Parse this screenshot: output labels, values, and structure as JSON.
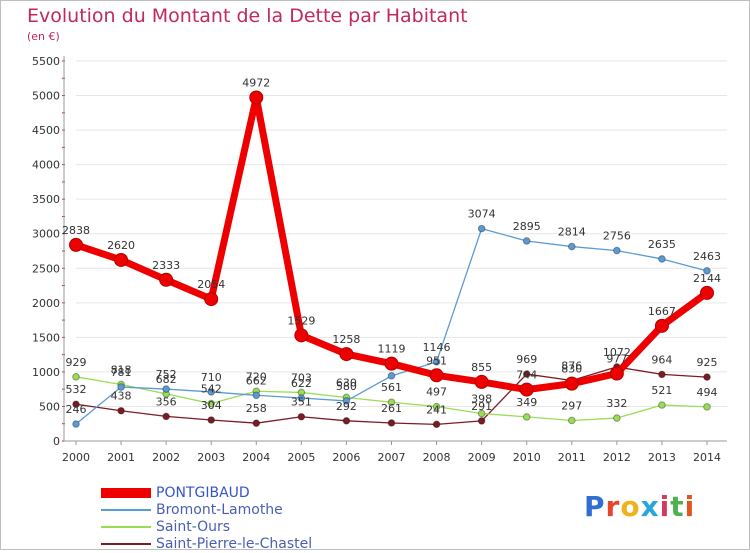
{
  "header": {
    "title": "Evolution du Montant de la Dette par Habitant",
    "subtitle": "(en €)"
  },
  "logo": {
    "text": "Proxiti",
    "letter_colors": [
      "#2f6fcf",
      "#e8442c",
      "#f0b21c",
      "#2aa6d8",
      "#d23c5a",
      "#4fb04f",
      "#e0561e"
    ]
  },
  "colors": {
    "title": "#c0285e",
    "axis_text": "#333333",
    "grid": "#e6e6e6",
    "tick": "#c0285e"
  },
  "chart_data": {
    "type": "line",
    "title": "Evolution du Montant de la Dette par Habitant",
    "subtitle": "(en €)",
    "x": [
      "2000",
      "2001",
      "2002",
      "2003",
      "2004",
      "2005",
      "2006",
      "2007",
      "2008",
      "2009",
      "2010",
      "2011",
      "2012",
      "2013",
      "2014"
    ],
    "ylim": [
      0,
      5500
    ],
    "yticks": [
      0,
      500,
      1000,
      1500,
      2000,
      2500,
      3000,
      3500,
      4000,
      4500,
      5000,
      5500
    ],
    "grid": true,
    "legend_position": "bottom-left",
    "series": [
      {
        "name": "PONTGIBAUD",
        "color": "#ee0000",
        "values": [
          2838,
          2620,
          2333,
          2054,
          4972,
          1529,
          1258,
          1119,
          951,
          855,
          744,
          830,
          977,
          1667,
          2144
        ],
        "labels": [
          "2838",
          "2620",
          "2333",
          "2054",
          "4972",
          "1529",
          "1258",
          "1119",
          "951",
          "855",
          "744",
          "830",
          "977",
          "1667",
          "2144"
        ]
      },
      {
        "name": "Bromont-Lamothe",
        "color": "#5b9bd5",
        "values": [
          246,
          781,
          752,
          710,
          662,
          622,
          580,
          943,
          1146,
          3074,
          2895,
          2814,
          2756,
          2635,
          2463
        ],
        "labels": [
          "246",
          "781",
          "752",
          "710",
          "662",
          "622",
          "580",
          "",
          "1146",
          "3074",
          "2895",
          "2814",
          "2756",
          "2635",
          "2463"
        ]
      },
      {
        "name": "Saint-Ours",
        "color": "#99dd55",
        "values": [
          929,
          818,
          682,
          542,
          720,
          703,
          630,
          561,
          497,
          398,
          349,
          297,
          332,
          521,
          494
        ],
        "labels": [
          "929",
          "818",
          "682",
          "542",
          "720",
          "703",
          "630",
          "561",
          "497",
          "398",
          "349",
          "297",
          "332",
          "521",
          "494"
        ]
      },
      {
        "name": "Saint-Pierre-le-Chastel",
        "color": "#7a1c24",
        "values": [
          532,
          438,
          356,
          304,
          258,
          351,
          292,
          261,
          241,
          291,
          969,
          876,
          1072,
          964,
          925
        ],
        "labels": [
          "532",
          "438",
          "356",
          "304",
          "258",
          "351",
          "292",
          "261",
          "241",
          "291",
          "969",
          "876",
          "1072",
          "964",
          "925"
        ]
      }
    ]
  }
}
